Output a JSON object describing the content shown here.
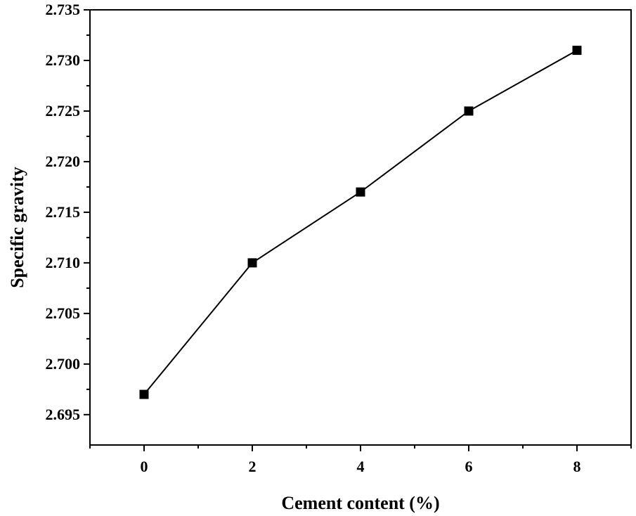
{
  "chart_data": {
    "type": "line",
    "title": "",
    "xlabel": "Cement content (%)",
    "ylabel": "Specific gravity",
    "x": [
      0,
      2,
      4,
      6,
      8
    ],
    "series": [
      {
        "values": [
          2.697,
          2.71,
          2.717,
          2.725,
          2.731
        ],
        "color": "#000000",
        "marker": "square"
      }
    ],
    "xlim": [
      -1,
      9
    ],
    "ylim": [
      2.692,
      2.735
    ],
    "xticks": [
      "0",
      "2",
      "4",
      "6",
      "8"
    ],
    "yticks": [
      "2.695",
      "2.700",
      "2.705",
      "2.710",
      "2.715",
      "2.720",
      "2.725",
      "2.730",
      "2.735"
    ],
    "grid": false,
    "legend": "none"
  }
}
